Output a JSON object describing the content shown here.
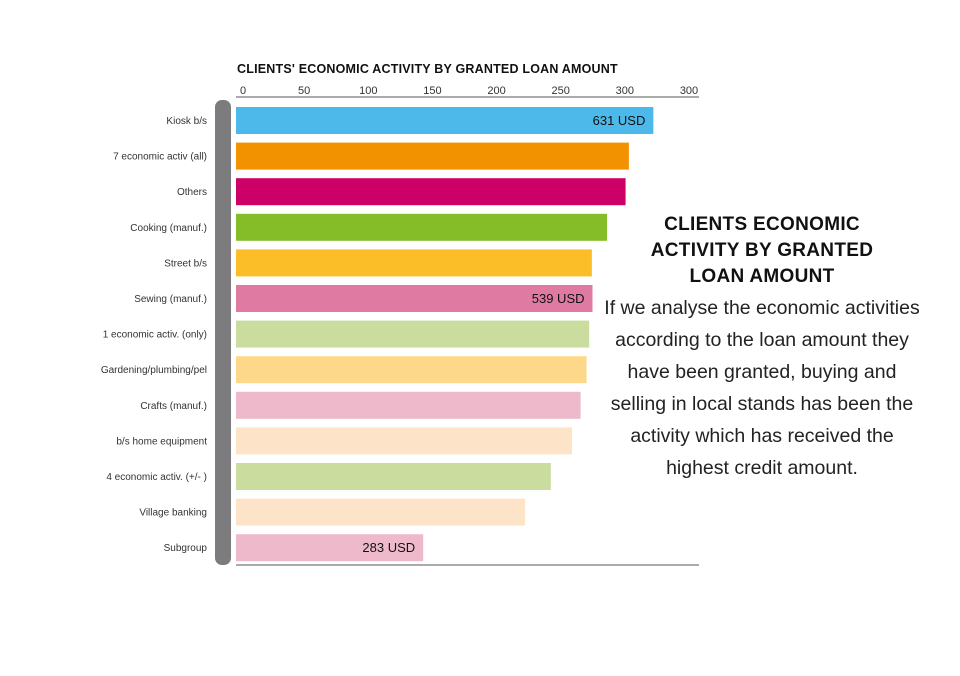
{
  "chart_data": {
    "type": "bar",
    "orientation": "horizontal",
    "title": "CLIENTS' ECONOMIC ACTIVITY BY GRANTED LOAN AMOUNT",
    "x_tick_labels": [
      "0",
      "50",
      "100",
      "150",
      "200",
      "250",
      "300",
      "300"
    ],
    "categories": [
      "Kiosk b/s",
      "7 economic activ (all)",
      "Others",
      "Cooking (manuf.)",
      "Street b/s",
      "Sewing (manuf.)",
      "1 economic activ. (only)",
      "Gardening/plumbing/pel",
      "Crafts (manuf.)",
      "b/s home equipment",
      "4 economic activ. (+/- )",
      "Village banking",
      "Subgroup"
    ],
    "values": [
      631,
      594,
      589,
      561,
      538,
      539,
      534,
      530,
      521,
      508,
      476,
      437,
      283
    ],
    "colors": [
      "#4cb9ea",
      "#f39200",
      "#cc0066",
      "#84bd28",
      "#fbbd28",
      "#df7ba2",
      "#cadd9f",
      "#fdd88a",
      "#eebacb",
      "#fde4c9",
      "#cadd9f",
      "#fde4c9",
      "#eebacb"
    ],
    "data_labels": [
      "631 USD",
      "",
      "",
      "",
      "",
      "539 USD",
      "",
      "",
      "",
      "",
      "",
      "",
      "283 USD"
    ],
    "xlim": [
      0,
      700
    ],
    "grid": false,
    "legend": "none"
  },
  "side_panel": {
    "title": "CLIENTS ECONOMIC ACTIVITY BY GRANTED LOAN AMOUNT",
    "text": "If we analyse the economic activities according to the loan amount they have been granted, buying and selling in local stands has been the activity which has received the highest credit amount."
  }
}
